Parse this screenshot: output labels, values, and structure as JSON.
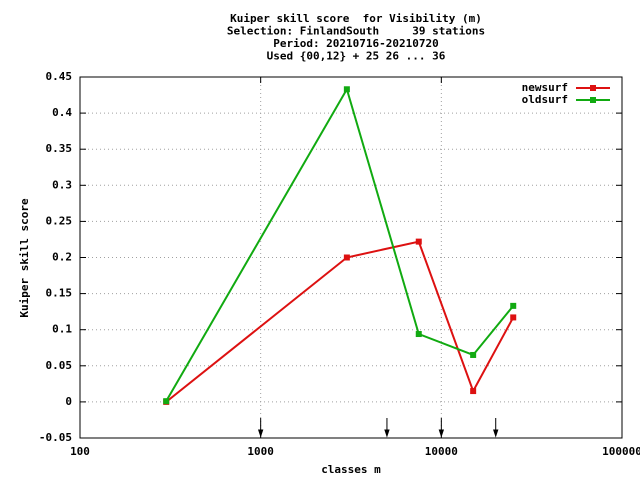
{
  "chart_data": {
    "type": "line",
    "title_lines": [
      "Kuiper skill score  for Visibility (m)",
      "Selection: FinlandSouth     39 stations",
      "Period: 20210716-20210720",
      "Used {00,12} + 25 26 ... 36"
    ],
    "x_label": "classes m",
    "y_label": "Kuiper skill score",
    "x": [
      300,
      3000,
      7500,
      15000,
      25000
    ],
    "series": [
      {
        "name": "newsurf",
        "color": "#dd1111",
        "values": [
          0.0,
          0.2,
          0.222,
          0.015,
          0.117
        ]
      },
      {
        "name": "oldsurf",
        "color": "#11aa11",
        "values": [
          0.001,
          0.433,
          0.094,
          0.065,
          0.133
        ]
      }
    ],
    "boundary_arrows": [
      1000,
      5000,
      10000,
      20000
    ],
    "xlim": [
      100,
      100000
    ],
    "xticks": [
      100,
      1000,
      10000,
      100000
    ],
    "x_log": true,
    "ylim": [
      -0.05,
      0.45
    ],
    "yticks": [
      -0.05,
      0,
      0.05,
      0.1,
      0.15,
      0.2,
      0.25,
      0.3,
      0.35,
      0.4,
      0.45
    ],
    "grid": true,
    "legend": "top-right"
  }
}
